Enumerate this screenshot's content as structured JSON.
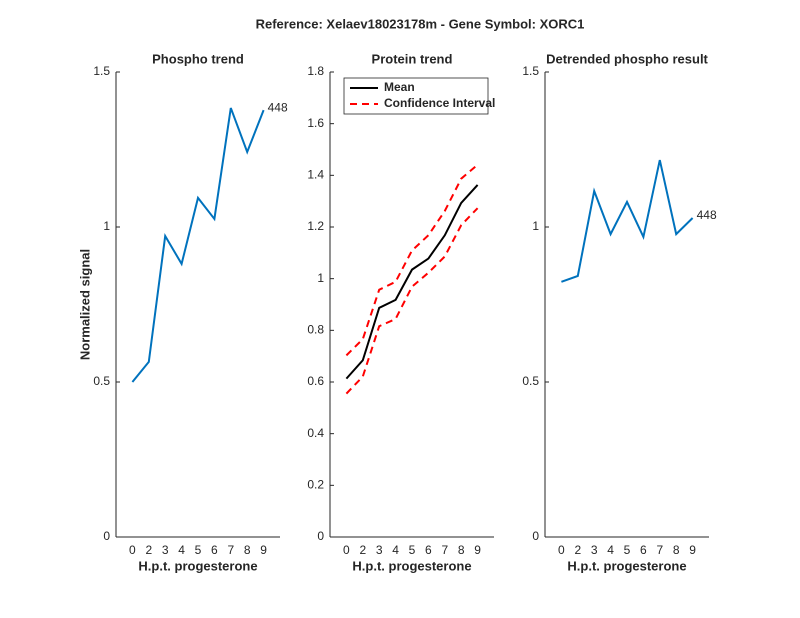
{
  "title": "Reference:  Xelaev18023178m - Gene Symbol:  XORC1",
  "chart_data": [
    {
      "type": "line",
      "title": "Phospho trend",
      "xlabel": "H.p.t. progesterone",
      "ylabel": "Normalized signal",
      "categories": [
        "0",
        "2",
        "3",
        "4",
        "5",
        "6",
        "7",
        "8",
        "9"
      ],
      "series": [
        {
          "color": "#0072bd",
          "values": [
            0.5,
            0.565,
            0.971,
            0.881,
            1.094,
            1.026,
            1.384,
            1.242,
            1.377
          ]
        }
      ],
      "annotation": "448",
      "ylim": [
        0,
        1.5
      ],
      "yticks": [
        0,
        0.5,
        1,
        1.5
      ]
    },
    {
      "type": "line",
      "title": "Protein trend",
      "xlabel": "H.p.t. progesterone",
      "categories": [
        "0",
        "2",
        "3",
        "4",
        "5",
        "6",
        "7",
        "8",
        "9"
      ],
      "series": [
        {
          "name": "Mean",
          "color": "#000000",
          "values": [
            0.613,
            0.684,
            0.887,
            0.918,
            1.035,
            1.078,
            1.168,
            1.293,
            1.363
          ]
        },
        {
          "name": "Confidence Interval",
          "color": "#ff0000",
          "dashed": true,
          "upper": [
            0.703,
            0.766,
            0.957,
            0.988,
            1.109,
            1.168,
            1.262,
            1.387,
            1.441
          ],
          "lower": [
            0.555,
            0.621,
            0.816,
            0.844,
            0.969,
            1.023,
            1.086,
            1.207,
            1.273
          ]
        }
      ],
      "legend": "upper-left",
      "ylim": [
        0,
        1.8
      ],
      "yticks": [
        0,
        0.2,
        0.4,
        0.6,
        0.8,
        1,
        1.2,
        1.4,
        1.6,
        1.8
      ]
    },
    {
      "type": "line",
      "title": "Detrended phospho result",
      "xlabel": "H.p.t. progesterone",
      "categories": [
        "0",
        "2",
        "3",
        "4",
        "5",
        "6",
        "7",
        "8",
        "9"
      ],
      "series": [
        {
          "color": "#0072bd",
          "values": [
            0.823,
            0.842,
            1.116,
            0.977,
            1.081,
            0.968,
            1.216,
            0.977,
            1.029
          ]
        }
      ],
      "annotation": "448",
      "ylim": [
        0,
        1.5
      ],
      "yticks": [
        0,
        0.5,
        1,
        1.5
      ]
    }
  ]
}
